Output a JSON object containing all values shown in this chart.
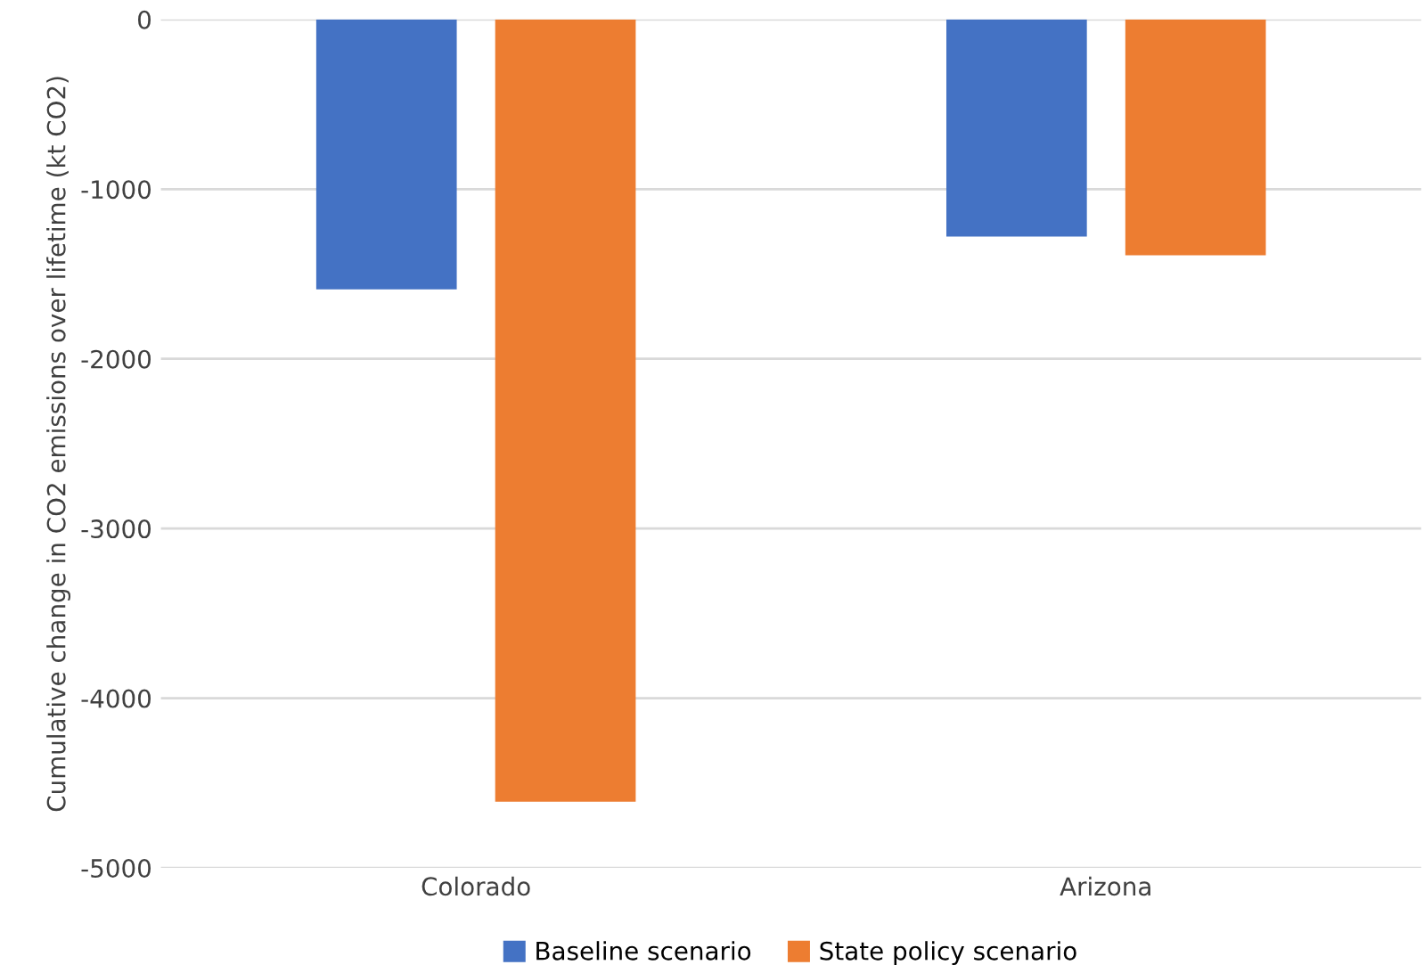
{
  "chart_data": {
    "type": "bar",
    "ylabel": "Cumulative change in CO2 emissions over lifetime (kt CO2)",
    "categories": [
      "Colorado",
      "Arizona"
    ],
    "series": [
      {
        "name": "Baseline scenario",
        "color": "#4472c4",
        "values": [
          -1590,
          -1280
        ]
      },
      {
        "name": "State policy scenario",
        "color": "#ed7d31",
        "values": [
          -4610,
          -1390
        ]
      }
    ],
    "ylim": [
      -5000,
      0
    ],
    "yticks": [
      -5000,
      -4000,
      -3000,
      -2000,
      -1000,
      0
    ],
    "grid": "y",
    "legend": "bottom"
  }
}
